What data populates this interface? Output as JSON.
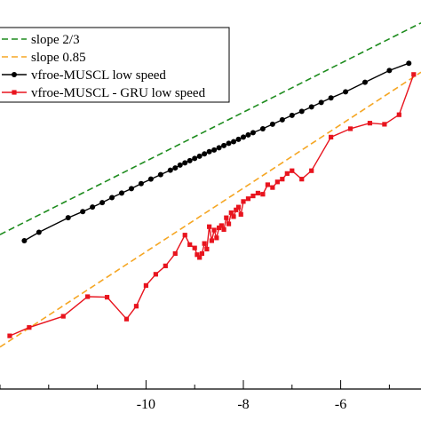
{
  "chart_data": {
    "type": "line",
    "title": "",
    "xlabel": "",
    "ylabel": "",
    "xlim": [
      -13.0,
      -4.35
    ],
    "ylim": [
      -10.2,
      -3.25
    ],
    "x_ticks": [
      {
        "value": -10,
        "label": "-10"
      },
      {
        "value": -8,
        "label": "-8"
      },
      {
        "value": -6,
        "label": "-6"
      }
    ],
    "grid": false,
    "legend_position": "top-left",
    "series": [
      {
        "name": "slope 2/3",
        "style": "dashed",
        "color": "#1e8c1e",
        "marker": "none",
        "x": [
          -13.0,
          -4.35
        ],
        "y": [
          -7.44,
          -3.66
        ]
      },
      {
        "name": "slope 0.85",
        "style": "dashed",
        "color": "#f5a623",
        "marker": "none",
        "x": [
          -13.0,
          -4.35
        ],
        "y": [
          -9.45,
          -4.54
        ]
      },
      {
        "name": "vfroe-MUSCL low speed",
        "style": "solid",
        "color": "#000000",
        "marker": "circle",
        "x": [
          -12.5,
          -12.2,
          -11.6,
          -11.3,
          -11.1,
          -10.9,
          -10.7,
          -10.5,
          -10.3,
          -10.1,
          -9.9,
          -9.7,
          -9.5,
          -9.4,
          -9.3,
          -9.2,
          -9.1,
          -9.0,
          -8.9,
          -8.8,
          -8.7,
          -8.6,
          -8.5,
          -8.4,
          -8.3,
          -8.2,
          -8.1,
          -8.0,
          -7.9,
          -7.8,
          -7.6,
          -7.4,
          -7.2,
          -7.0,
          -6.8,
          -6.6,
          -6.4,
          -6.2,
          -5.9,
          -5.5,
          -5.0,
          -4.6
        ],
        "y": [
          -7.55,
          -7.4,
          -7.14,
          -7.03,
          -6.95,
          -6.87,
          -6.78,
          -6.7,
          -6.62,
          -6.53,
          -6.45,
          -6.37,
          -6.29,
          -6.25,
          -6.2,
          -6.16,
          -6.12,
          -6.08,
          -6.04,
          -6.0,
          -5.96,
          -5.93,
          -5.89,
          -5.85,
          -5.81,
          -5.78,
          -5.74,
          -5.7,
          -5.66,
          -5.62,
          -5.55,
          -5.47,
          -5.39,
          -5.31,
          -5.24,
          -5.16,
          -5.08,
          -5.0,
          -4.89,
          -4.72,
          -4.51,
          -4.38
        ]
      },
      {
        "name": "vfroe-MUSCL - GRU low speed",
        "style": "solid",
        "color": "#e8141e",
        "marker": "square",
        "x": [
          -12.8,
          -12.4,
          -11.7,
          -11.2,
          -10.8,
          -10.4,
          -10.2,
          -10.0,
          -9.8,
          -9.6,
          -9.4,
          -9.2,
          -9.1,
          -9.0,
          -8.95,
          -8.9,
          -8.85,
          -8.8,
          -8.75,
          -8.7,
          -8.65,
          -8.6,
          -8.55,
          -8.5,
          -8.45,
          -8.4,
          -8.35,
          -8.3,
          -8.25,
          -8.2,
          -8.15,
          -8.1,
          -8.05,
          -8.0,
          -7.9,
          -7.8,
          -7.7,
          -7.6,
          -7.5,
          -7.4,
          -7.3,
          -7.2,
          -7.1,
          -7.0,
          -6.8,
          -6.6,
          -6.2,
          -5.8,
          -5.4,
          -5.1,
          -4.8,
          -4.5
        ],
        "y": [
          -9.25,
          -9.1,
          -8.9,
          -8.55,
          -8.56,
          -8.95,
          -8.72,
          -8.35,
          -8.15,
          -8.0,
          -7.78,
          -7.45,
          -7.62,
          -7.68,
          -7.8,
          -7.85,
          -7.78,
          -7.6,
          -7.7,
          -7.3,
          -7.55,
          -7.36,
          -7.5,
          -7.32,
          -7.28,
          -7.35,
          -7.14,
          -7.25,
          -7.05,
          -7.12,
          -7.0,
          -6.95,
          -7.08,
          -6.85,
          -6.8,
          -6.75,
          -6.7,
          -6.72,
          -6.55,
          -6.6,
          -6.5,
          -6.45,
          -6.35,
          -6.3,
          -6.45,
          -6.3,
          -5.7,
          -5.55,
          -5.45,
          -5.47,
          -5.3,
          -4.58
        ]
      }
    ]
  }
}
